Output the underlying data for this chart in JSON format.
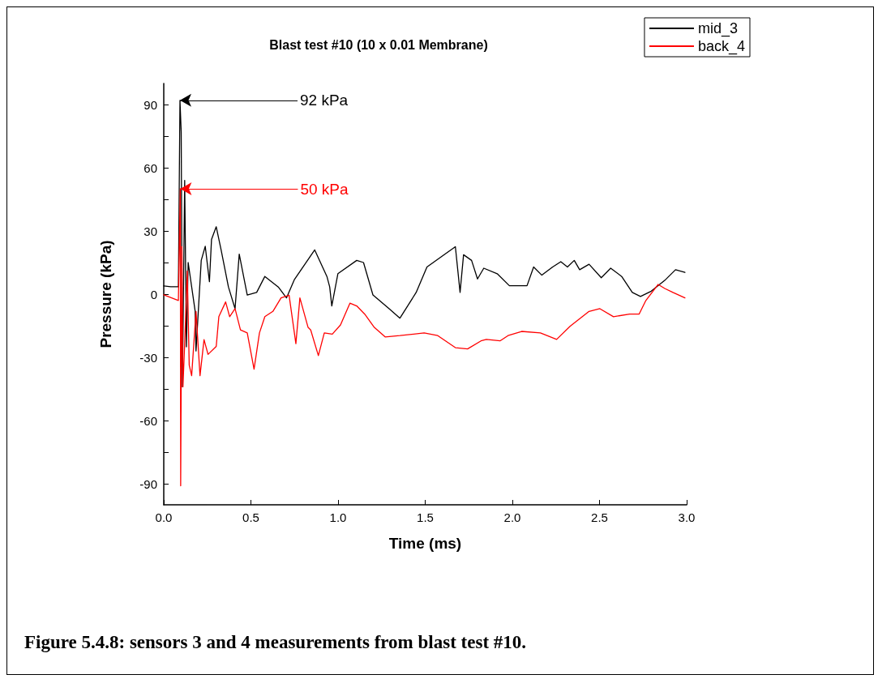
{
  "chart_data": {
    "type": "line",
    "title": "Blast test #10 (10 x 0.01 Membrane)",
    "xlabel": "Time (ms)",
    "ylabel": "Pressure (kPa)",
    "xlim": [
      0,
      3
    ],
    "xticks": [
      {
        "value": 0,
        "label": "0.0"
      },
      0.5,
      {
        "value": 1,
        "label": "1.0"
      },
      1.5,
      {
        "value": 2,
        "label": "2.0"
      },
      2.5,
      {
        "value": 3,
        "label": "3.0"
      }
    ],
    "ylim": [
      -100,
      100
    ],
    "yticks": [
      -90,
      {
        "value": -75,
        "label": null
      },
      -60,
      {
        "value": -45,
        "label": null
      },
      -30,
      {
        "value": -15,
        "label": null
      },
      0,
      {
        "value": 15,
        "label": null
      },
      30,
      {
        "value": 45,
        "label": null
      },
      60,
      {
        "value": 75,
        "label": null
      },
      90
    ],
    "grid": false,
    "legend": "top right",
    "marker": "none",
    "line_style": "solid",
    "series": [
      {
        "name": "mid_3",
        "color": "#000000",
        "x": [
          0,
          0.04,
          0.084,
          0.093,
          0.1,
          0.107,
          0.12,
          0.13,
          0.14,
          0.18,
          0.185,
          0.215,
          0.238,
          0.262,
          0.274,
          0.301,
          0.329,
          0.371,
          0.409,
          0.433,
          0.479,
          0.533,
          0.58,
          0.657,
          0.704,
          0.75,
          0.866,
          0.936,
          0.952,
          0.964,
          0.999,
          1.107,
          1.146,
          1.2,
          1.293,
          1.355,
          1.448,
          1.51,
          1.619,
          1.673,
          1.7,
          1.72,
          1.766,
          1.8,
          1.836,
          1.913,
          1.983,
          2.084,
          2.122,
          2.169,
          2.231,
          2.278,
          2.316,
          2.355,
          2.386,
          2.44,
          2.51,
          2.564,
          2.627,
          2.688,
          2.735,
          2.797,
          2.874,
          2.936,
          2.99
        ],
        "values": [
          3.9,
          3.5,
          3.5,
          92,
          77,
          -44,
          54,
          -25,
          15,
          -8,
          -27,
          16,
          22.7,
          5.9,
          26,
          32,
          21,
          3.4,
          -6.9,
          19,
          -0.4,
          0.8,
          8.4,
          3.4,
          -1.8,
          7,
          21,
          8.4,
          3.4,
          -5.6,
          9.7,
          16,
          15,
          -0.4,
          -6.9,
          -11.4,
          0.8,
          12.9,
          19.3,
          22.5,
          0.8,
          18.7,
          16,
          7.2,
          12.3,
          9.7,
          4,
          4,
          12.9,
          9,
          12.9,
          15.4,
          12.9,
          16,
          11.6,
          14.2,
          7.8,
          12.3,
          8.4,
          0.8,
          -1.1,
          1.4,
          6.5,
          11.6,
          10.3
        ]
      },
      {
        "name": "back_4",
        "color": "#ff0000",
        "x": [
          0,
          0.084,
          0.095,
          0.097,
          0.104,
          0.11,
          0.12,
          0.135,
          0.146,
          0.16,
          0.185,
          0.208,
          0.231,
          0.254,
          0.301,
          0.316,
          0.355,
          0.378,
          0.409,
          0.44,
          0.479,
          0.518,
          0.549,
          0.58,
          0.626,
          0.673,
          0.719,
          0.758,
          0.781,
          0.828,
          0.843,
          0.887,
          0.921,
          0.967,
          1.014,
          1.068,
          1.107,
          1.153,
          1.208,
          1.27,
          1.355,
          1.494,
          1.572,
          1.673,
          1.743,
          1.82,
          1.851,
          1.929,
          1.975,
          2.053,
          2.161,
          2.254,
          2.332,
          2.44,
          2.502,
          2.58,
          2.673,
          2.727,
          2.766,
          2.836,
          2.874,
          2.921,
          2.99
        ],
        "values": [
          -0.3,
          -3,
          50,
          -91,
          22.5,
          -44,
          -23.5,
          11,
          -33.7,
          -38.7,
          -8.2,
          -38.7,
          -21.6,
          -28.6,
          -24.8,
          -10.7,
          -3.7,
          -10.7,
          -6.9,
          -17,
          -18.4,
          -35.6,
          -18.4,
          -10.7,
          -8.2,
          -1.8,
          -0.5,
          -23.5,
          -1.8,
          -15.8,
          -17,
          -29.2,
          -18.4,
          -19,
          -14.6,
          -4.3,
          -5.6,
          -9.5,
          -15.8,
          -20.3,
          -19.7,
          -18.4,
          -19.7,
          -25.4,
          -26,
          -22.2,
          -21.5,
          -22.2,
          -19.7,
          -17.7,
          -18.4,
          -21.5,
          -15.2,
          -8.2,
          -6.9,
          -10.7,
          -9.5,
          -9.5,
          -3,
          4.6,
          2.7,
          0.8,
          -1.8
        ]
      }
    ],
    "annotations": [
      {
        "text": "92 kPa",
        "x": 0.093,
        "y": 92
      },
      {
        "text": "50 kPa",
        "x": 0.095,
        "y": 50
      },
      "Figure 5.4.8: sensors 3 and 4 measurements from blast test #10."
    ]
  }
}
